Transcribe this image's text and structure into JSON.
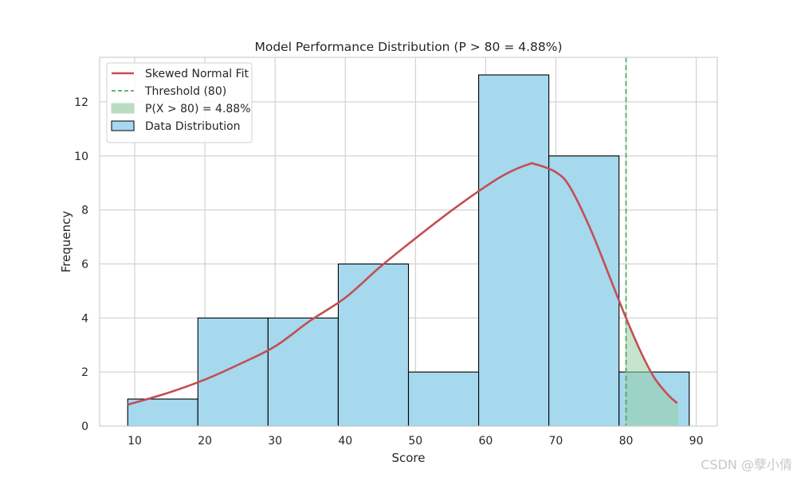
{
  "watermark": "CSDN @孽小倩",
  "chart_data": {
    "type": "bar",
    "title": "Model Performance Distribution (P > 80 = 4.88%)",
    "xlabel": "Score",
    "ylabel": "Frequency",
    "xlim": [
      5,
      93
    ],
    "ylim": [
      0,
      13.65
    ],
    "xticks": [
      10,
      20,
      30,
      40,
      50,
      60,
      70,
      80,
      90
    ],
    "yticks": [
      0,
      2,
      4,
      6,
      8,
      10,
      12
    ],
    "grid": true,
    "legend_position": "top-left",
    "bins": [
      {
        "x0": 9.0,
        "x1": 19.0,
        "count": 1
      },
      {
        "x0": 19.0,
        "x1": 29.0,
        "count": 4
      },
      {
        "x0": 29.0,
        "x1": 39.0,
        "count": 4
      },
      {
        "x0": 39.0,
        "x1": 49.0,
        "count": 6
      },
      {
        "x0": 49.0,
        "x1": 59.0,
        "count": 2
      },
      {
        "x0": 59.0,
        "x1": 69.0,
        "count": 13
      },
      {
        "x0": 69.0,
        "x1": 79.0,
        "count": 10
      },
      {
        "x0": 79.0,
        "x1": 89.0,
        "count": 2
      }
    ],
    "fit_curve": {
      "x": [
        9.0,
        15,
        20,
        25,
        30,
        35,
        40,
        45,
        50,
        55,
        60,
        63,
        66,
        67,
        70,
        72,
        75,
        78,
        80,
        82,
        84,
        86,
        87.3
      ],
      "y": [
        0.79,
        1.25,
        1.72,
        2.3,
        2.95,
        3.9,
        4.75,
        5.9,
        6.95,
        7.95,
        8.87,
        9.35,
        9.68,
        9.7,
        9.4,
        8.85,
        7.25,
        5.3,
        4.0,
        2.8,
        1.8,
        1.15,
        0.85
      ]
    },
    "threshold": 80,
    "shaded_region": {
      "x0": 80,
      "x1": 87.3
    },
    "legend": [
      {
        "label": "Skewed Normal Fit",
        "kind": "line",
        "color": "#c44e52"
      },
      {
        "label": "Threshold (80)",
        "kind": "dashed",
        "color": "#55a868"
      },
      {
        "label": "P(X > 80) = 4.88%",
        "kind": "patch",
        "color": "#b9dcc2"
      },
      {
        "label": "Data Distribution",
        "kind": "patch",
        "color": "#a6d8ee"
      }
    ],
    "colors": {
      "bar_fill": "#a6d8ee",
      "bar_edge": "#000000",
      "curve": "#c44e52",
      "threshold": "#55a868",
      "shade": "#96cfa6",
      "grid": "#cfcfcf"
    }
  }
}
